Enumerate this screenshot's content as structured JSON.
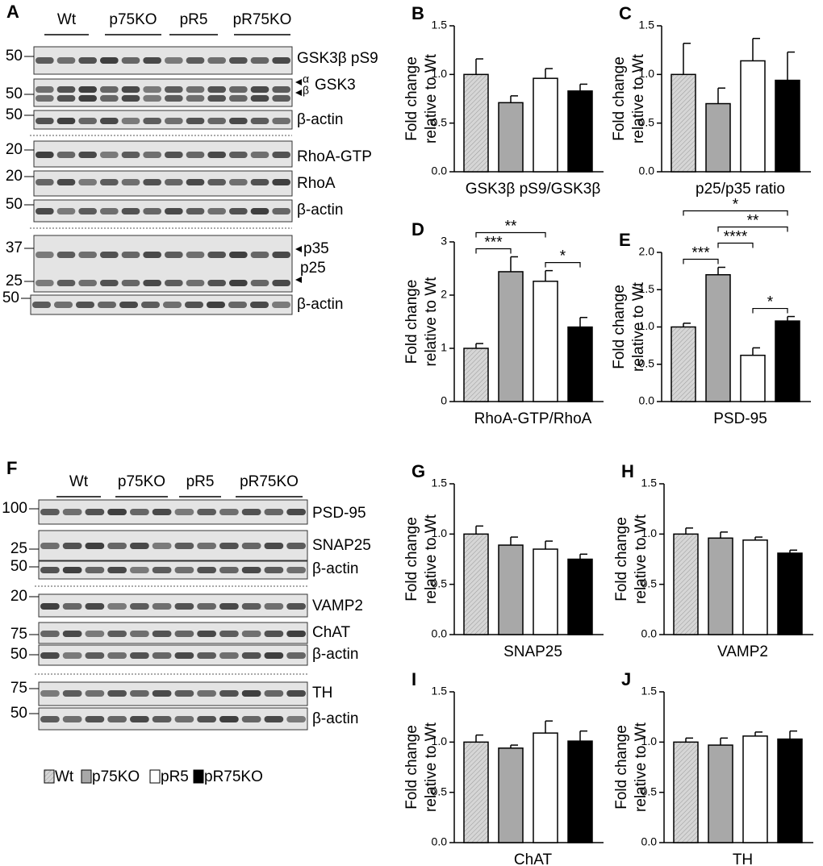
{
  "blots": [
    {
      "letter": "A",
      "groups": [
        "Wt",
        "p75KO",
        "pR5",
        "pR75KO"
      ],
      "rows": [
        {
          "markers": [
            "50"
          ],
          "labels": [
            "GSK3β pS9"
          ]
        },
        {
          "markers": [
            "50"
          ],
          "labels": [
            "α",
            "β",
            "GSK3"
          ]
        },
        {
          "markers": [
            "50"
          ],
          "labels": [
            "β-actin"
          ]
        },
        {
          "markers": [
            "20"
          ],
          "labels": [
            "RhoA-GTP"
          ]
        },
        {
          "markers": [
            "20"
          ],
          "labels": [
            "RhoA"
          ]
        },
        {
          "markers": [
            "50"
          ],
          "labels": [
            "β-actin"
          ]
        },
        {
          "markers": [
            "37",
            "25"
          ],
          "labels": [
            "p35",
            "p25"
          ]
        },
        {
          "markers": [
            "50"
          ],
          "labels": [
            "β-actin"
          ]
        }
      ]
    },
    {
      "letter": "F",
      "groups": [
        "Wt",
        "p75KO",
        "pR5",
        "pR75KO"
      ],
      "rows": [
        {
          "markers": [
            "100"
          ],
          "labels": [
            "PSD-95"
          ]
        },
        {
          "markers": [
            "25"
          ],
          "labels": [
            "SNAP25"
          ]
        },
        {
          "markers": [
            "50"
          ],
          "labels": [
            "β-actin"
          ]
        },
        {
          "markers": [
            "20"
          ],
          "labels": [
            "VAMP2"
          ]
        },
        {
          "markers": [
            "75"
          ],
          "labels": [
            "ChAT"
          ]
        },
        {
          "markers": [
            "50"
          ],
          "labels": [
            "β-actin"
          ]
        },
        {
          "markers": [
            "75"
          ],
          "labels": [
            "TH"
          ]
        },
        {
          "markers": [
            "50"
          ],
          "labels": [
            "β-actin"
          ]
        }
      ]
    }
  ],
  "legend": [
    {
      "name": "Wt",
      "color": "#d6d6d6"
    },
    {
      "name": "p75KO",
      "color": "#a8a8a8"
    },
    {
      "name": "pR5",
      "color": "#ffffff"
    },
    {
      "name": "pR75KO",
      "color": "#000000"
    }
  ],
  "chart_data": [
    {
      "type": "bar",
      "letter": "B",
      "ylabel": [
        "Fold change",
        "relative to Wt"
      ],
      "xlabel": "GSK3β pS9/GSK3β",
      "values": [
        1.0,
        0.71,
        0.96,
        0.83
      ],
      "errors": [
        0.16,
        0.07,
        0.1,
        0.07
      ],
      "colors": [
        "#d6d6d6",
        "#a8a8a8",
        "#ffffff",
        "#000000"
      ],
      "ylim": [
        0,
        1.5
      ],
      "yticks": [
        {
          "value": 0,
          "label": "0.0"
        },
        {
          "value": 0.5,
          "label": "0.5"
        },
        {
          "value": 1,
          "label": "1.0"
        },
        {
          "value": 1.5,
          "label": "1.5"
        }
      ]
    },
    {
      "type": "bar",
      "letter": "C",
      "ylabel": [
        "Fold change",
        "relative to Wt"
      ],
      "xlabel": "p25/p35 ratio",
      "values": [
        1.0,
        0.7,
        1.14,
        0.94
      ],
      "errors": [
        0.32,
        0.16,
        0.23,
        0.29
      ],
      "colors": [
        "#d6d6d6",
        "#a8a8a8",
        "#ffffff",
        "#000000"
      ],
      "ylim": [
        0,
        1.5
      ],
      "yticks": [
        {
          "value": 0,
          "label": "0.0"
        },
        {
          "value": 0.5,
          "label": "0.5"
        },
        {
          "value": 1,
          "label": "1.0"
        },
        {
          "value": 1.5,
          "label": "1.5"
        }
      ]
    },
    {
      "type": "bar",
      "letter": "D",
      "ylabel": [
        "Fold change",
        "relative to Wt"
      ],
      "xlabel": "RhoA-GTP/RhoA",
      "values": [
        1.0,
        2.44,
        2.26,
        1.4
      ],
      "errors": [
        0.09,
        0.28,
        0.2,
        0.18
      ],
      "colors": [
        "#d6d6d6",
        "#a8a8a8",
        "#ffffff",
        "#000000"
      ],
      "ylim": [
        0,
        3
      ],
      "yticks": [
        0,
        1,
        2,
        3
      ],
      "significance": [
        {
          "from": "Wt",
          "to": "p75KO",
          "label": "***"
        },
        {
          "from": "pR5",
          "to": "pR75KO",
          "label": "*"
        },
        {
          "from": "Wt",
          "to": "pR5",
          "label": "**"
        }
      ]
    },
    {
      "type": "bar",
      "letter": "E",
      "ylabel": [
        "Fold change",
        "relative to Wt"
      ],
      "xlabel": "PSD-95",
      "values": [
        1.0,
        1.7,
        0.62,
        1.08
      ],
      "errors": [
        0.05,
        0.1,
        0.1,
        0.06
      ],
      "colors": [
        "#d6d6d6",
        "#a8a8a8",
        "#ffffff",
        "#000000"
      ],
      "ylim": [
        0,
        2
      ],
      "yticks": [
        {
          "value": 0,
          "label": "0.0"
        },
        {
          "value": 0.5,
          "label": "0.5"
        },
        {
          "value": 1,
          "label": "1.0"
        },
        {
          "value": 1.5,
          "label": "1.5"
        },
        {
          "value": 2,
          "label": "2.0"
        }
      ],
      "significance": [
        {
          "from": "pR5",
          "to": "pR75KO",
          "label": "*"
        },
        {
          "from": "Wt",
          "to": "p75KO",
          "label": "***"
        },
        {
          "from": "p75KO",
          "to": "pR5",
          "label": "****"
        },
        {
          "from": "p75KO",
          "to": "pR75KO",
          "label": "**"
        },
        {
          "from": "Wt",
          "to": "pR75KO",
          "label": "*"
        }
      ]
    },
    {
      "type": "bar",
      "letter": "G",
      "ylabel": [
        "Fold change",
        "relative to Wt"
      ],
      "xlabel": "SNAP25",
      "values": [
        1.0,
        0.89,
        0.85,
        0.75
      ],
      "errors": [
        0.08,
        0.08,
        0.08,
        0.05
      ],
      "colors": [
        "#d6d6d6",
        "#a8a8a8",
        "#ffffff",
        "#000000"
      ],
      "ylim": [
        0,
        1.5
      ],
      "yticks": [
        {
          "value": 0,
          "label": "0.0"
        },
        {
          "value": 0.5,
          "label": "0.5"
        },
        {
          "value": 1,
          "label": "1.0"
        },
        {
          "value": 1.5,
          "label": "1.5"
        }
      ]
    },
    {
      "type": "bar",
      "letter": "H",
      "ylabel": [
        "Fold change",
        "relative to Wt"
      ],
      "xlabel": "VAMP2",
      "values": [
        1.0,
        0.96,
        0.94,
        0.81
      ],
      "errors": [
        0.06,
        0.06,
        0.03,
        0.03
      ],
      "colors": [
        "#d6d6d6",
        "#a8a8a8",
        "#ffffff",
        "#000000"
      ],
      "ylim": [
        0,
        1.5
      ],
      "yticks": [
        {
          "value": 0,
          "label": "0.0"
        },
        {
          "value": 0.5,
          "label": "0.5"
        },
        {
          "value": 1,
          "label": "1.0"
        },
        {
          "value": 1.5,
          "label": "1.5"
        }
      ]
    },
    {
      "type": "bar",
      "letter": "I",
      "ylabel": [
        "Fold change",
        "relative to Wt"
      ],
      "xlabel": "ChAT",
      "values": [
        1.0,
        0.94,
        1.09,
        1.01
      ],
      "errors": [
        0.07,
        0.03,
        0.12,
        0.1
      ],
      "colors": [
        "#d6d6d6",
        "#a8a8a8",
        "#ffffff",
        "#000000"
      ],
      "ylim": [
        0,
        1.5
      ],
      "yticks": [
        {
          "value": 0,
          "label": "0.0"
        },
        {
          "value": 0.5,
          "label": "0.5"
        },
        {
          "value": 1,
          "label": "1.0"
        },
        {
          "value": 1.5,
          "label": "1.5"
        }
      ]
    },
    {
      "type": "bar",
      "letter": "J",
      "ylabel": [
        "Fold change",
        "relative to Wt"
      ],
      "xlabel": "TH",
      "values": [
        1.0,
        0.97,
        1.06,
        1.03
      ],
      "errors": [
        0.04,
        0.07,
        0.04,
        0.08
      ],
      "colors": [
        "#d6d6d6",
        "#a8a8a8",
        "#ffffff",
        "#000000"
      ],
      "ylim": [
        0,
        1.5
      ],
      "yticks": [
        {
          "value": 0,
          "label": "0.0"
        },
        {
          "value": 0.5,
          "label": "0.5"
        },
        {
          "value": 1,
          "label": "1.0"
        },
        {
          "value": 1.5,
          "label": "1.5"
        }
      ]
    }
  ]
}
